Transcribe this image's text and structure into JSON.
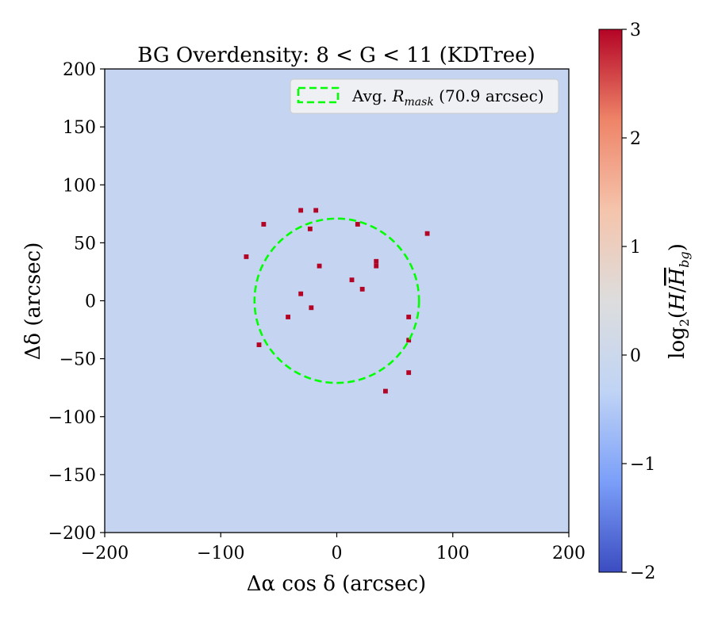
{
  "chart_data": {
    "type": "heatmap",
    "title": "BG Overdensity: 8 < G < 11 (KDTree)",
    "xlabel": "Δα cos δ (arcsec)",
    "ylabel": "Δδ (arcsec)",
    "xlim": [
      -200,
      200
    ],
    "ylim": [
      -200,
      200
    ],
    "x_ticks": [
      -200,
      -100,
      0,
      100,
      200
    ],
    "y_ticks": [
      -200,
      -150,
      -100,
      -50,
      0,
      50,
      100,
      150,
      200
    ],
    "x_tick_labels": [
      "−200",
      "−100",
      "0",
      "100",
      "200"
    ],
    "y_tick_labels": [
      "−200",
      "−150",
      "−100",
      "−50",
      "0",
      "50",
      "100",
      "150",
      "200"
    ],
    "background_value": -0.2,
    "hot_pixel_value": 3,
    "hot_pixel_size_arcsec": 4,
    "hot_pixels": [
      {
        "x": -31,
        "y": 78
      },
      {
        "x": -18,
        "y": 78
      },
      {
        "x": -63,
        "y": 66
      },
      {
        "x": -23,
        "y": 62
      },
      {
        "x": 18,
        "y": 66
      },
      {
        "x": 78,
        "y": 58
      },
      {
        "x": -78,
        "y": 38
      },
      {
        "x": -15,
        "y": 30
      },
      {
        "x": 34,
        "y": 34
      },
      {
        "x": 34,
        "y": 30
      },
      {
        "x": 13,
        "y": 18
      },
      {
        "x": 22,
        "y": 10
      },
      {
        "x": -31,
        "y": 6
      },
      {
        "x": -22,
        "y": -6
      },
      {
        "x": -42,
        "y": -14
      },
      {
        "x": 62,
        "y": -14
      },
      {
        "x": -67,
        "y": -38
      },
      {
        "x": 62,
        "y": -34
      },
      {
        "x": 62,
        "y": -62
      },
      {
        "x": 42,
        "y": -78
      }
    ],
    "mask_circle": {
      "cx": 0,
      "cy": 0,
      "r": 70.9,
      "color": "#00ff00",
      "style": "dashed"
    },
    "legend": {
      "position": "top-right",
      "entries": [
        {
          "label_prefix": "Avg. ",
          "label_var": "R",
          "label_sub": "mask",
          "label_suffix": " (70.9 arcsec)",
          "color": "#00ff00"
        }
      ]
    },
    "colorbar": {
      "min": -2,
      "max": 3,
      "ticks": [
        -2,
        -1,
        0,
        1,
        2,
        3
      ],
      "tick_labels": [
        "−2",
        "−1",
        "0",
        "1",
        "2",
        "3"
      ],
      "label_fn": "log",
      "label_fn_sub": "2",
      "label_num": "H",
      "label_den": "H",
      "label_den_sub": "bg",
      "colormap": "coolwarm",
      "stops": [
        "#3b4cc0",
        "#7b9ff9",
        "#c0d4f5",
        "#dddddd",
        "#f5c4ac",
        "#ee8468",
        "#b40426"
      ]
    },
    "grid": false
  }
}
